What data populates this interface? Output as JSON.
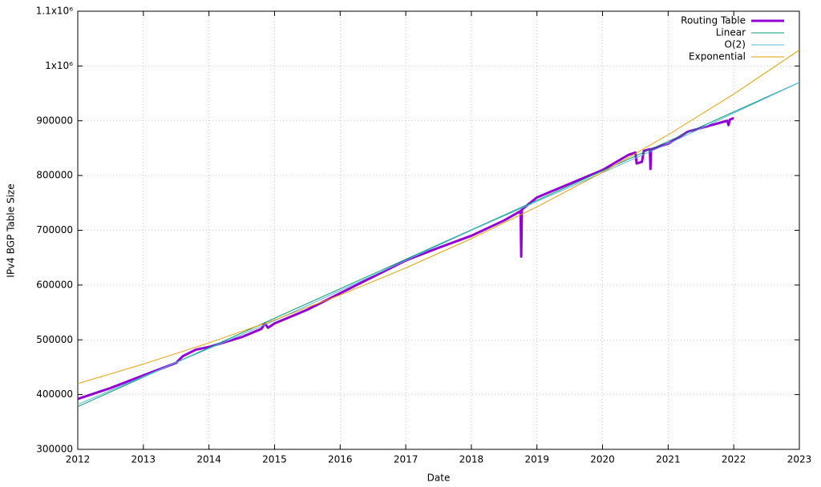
{
  "chart_data": {
    "type": "line",
    "xlabel": "Date",
    "ylabel": "IPv4 BGP Table Size",
    "xlim": [
      2012,
      2023
    ],
    "ylim": [
      300000,
      1100000
    ],
    "xticks": [
      2012,
      2013,
      2014,
      2015,
      2016,
      2017,
      2018,
      2019,
      2020,
      2021,
      2022,
      2023
    ],
    "yticks": [
      300000,
      400000,
      500000,
      600000,
      700000,
      800000,
      900000,
      {
        "value": 1000000,
        "label": "1x10⁶"
      },
      {
        "value": 1100000,
        "label": "1.1x10⁶"
      }
    ],
    "grid": true,
    "legend": "top-right",
    "series": [
      {
        "name": "Routing Table",
        "color": "#9400d3",
        "x": [
          2012.0,
          2012.5,
          2013.0,
          2013.5,
          2013.6,
          2013.8,
          2014.0,
          2014.5,
          2014.8,
          2014.85,
          2014.9,
          2015.0,
          2015.5,
          2016.0,
          2016.5,
          2017.0,
          2017.5,
          2018.0,
          2018.5,
          2018.75,
          2018.76,
          2018.77,
          2019.0,
          2019.5,
          2020.0,
          2020.4,
          2020.5,
          2020.52,
          2020.6,
          2020.63,
          2020.72,
          2020.73,
          2020.74,
          2021.0,
          2021.3,
          2021.6,
          2021.9,
          2021.92,
          2021.94,
          2022.0
        ],
        "values": [
          392000,
          412000,
          435000,
          458000,
          470000,
          482000,
          487000,
          505000,
          520000,
          530000,
          522000,
          530000,
          555000,
          585000,
          615000,
          645000,
          668000,
          690000,
          718000,
          735000,
          652000,
          738000,
          760000,
          785000,
          810000,
          838000,
          842000,
          822000,
          825000,
          845000,
          848000,
          812000,
          848000,
          858000,
          880000,
          890000,
          900000,
          892000,
          902000,
          905000
        ]
      },
      {
        "name": "Linear",
        "color": "#009e73",
        "x": [
          2012,
          2023
        ],
        "values": [
          378000,
          970000
        ]
      },
      {
        "name": "O(2)",
        "color": "#56b4e9",
        "x": [
          2012,
          2015,
          2018,
          2021,
          2023
        ],
        "values": [
          382000,
          535000,
          700000,
          858000,
          970000
        ]
      },
      {
        "name": "Exponential",
        "color": "#e69f00",
        "x": [
          2012,
          2013,
          2014,
          2015,
          2016,
          2017,
          2018,
          2019,
          2020,
          2021,
          2022,
          2023
        ],
        "values": [
          420000,
          455700,
          494400,
          536300,
          581800,
          631200,
          684800,
          742900,
          806000,
          874400,
          948700,
          1029200
        ]
      }
    ]
  }
}
